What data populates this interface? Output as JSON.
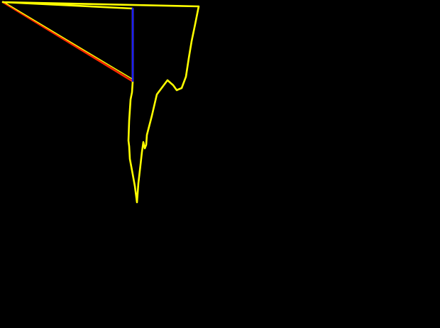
{
  "background_color": "#000000",
  "colors": {
    "outline": "#ffff00",
    "red_stroke": "#ff2a00",
    "blue_stroke": "#1a1aff"
  }
}
